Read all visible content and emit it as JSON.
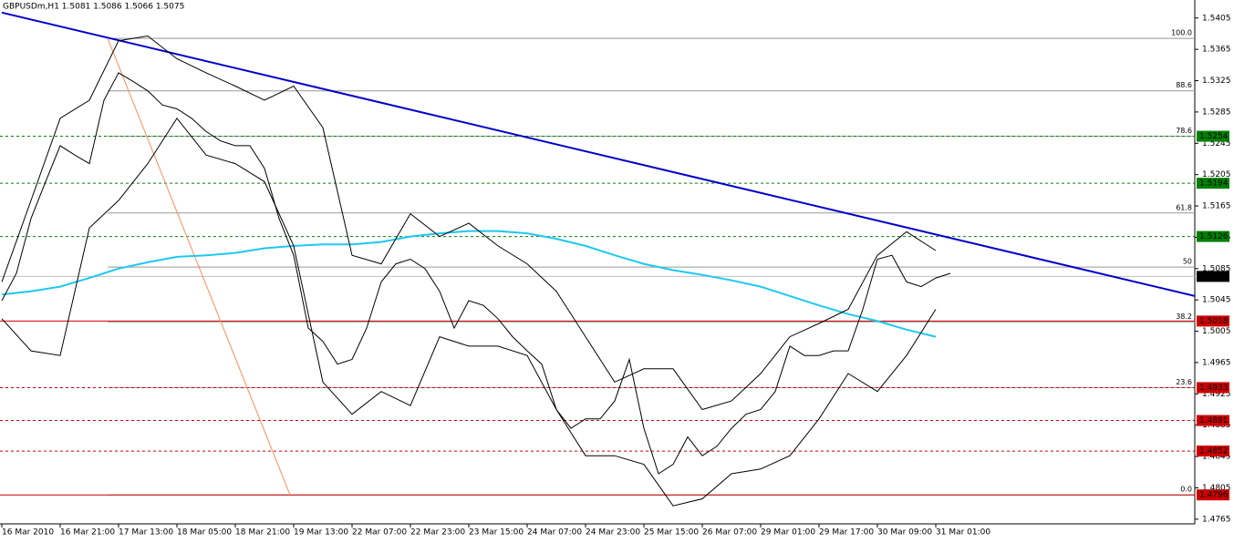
{
  "chart_data": {
    "type": "line",
    "title": "GBPUSDm,H1  1.5081 1.5086 1.5066 1.5075",
    "xlim": [
      0,
      327
    ],
    "ylim": [
      1.4759,
      1.5428
    ],
    "xticks": [
      {
        "value": 0,
        "label": "16 Mar 2010"
      },
      {
        "value": 16,
        "label": "16 Mar 21:00"
      },
      {
        "value": 32,
        "label": "17 Mar 13:00"
      },
      {
        "value": 48,
        "label": "18 Mar 05:00"
      },
      {
        "value": 64,
        "label": "18 Mar 21:00"
      },
      {
        "value": 80,
        "label": "19 Mar 13:00"
      },
      {
        "value": 96,
        "label": "22 Mar 07:00"
      },
      {
        "value": 112,
        "label": "22 Mar 23:00"
      },
      {
        "value": 128,
        "label": "23 Mar 15:00"
      },
      {
        "value": 144,
        "label": "24 Mar 07:00"
      },
      {
        "value": 160,
        "label": "24 Mar 23:00"
      },
      {
        "value": 176,
        "label": "25 Mar 15:00"
      },
      {
        "value": 192,
        "label": "26 Mar 07:00"
      },
      {
        "value": 208,
        "label": "29 Mar 01:00"
      },
      {
        "value": 224,
        "label": "29 Mar 17:00"
      },
      {
        "value": 240,
        "label": "30 Mar 09:00"
      },
      {
        "value": 256,
        "label": "31 Mar 01:00"
      }
    ],
    "yticks": [
      1.5405,
      1.5365,
      1.5325,
      1.5285,
      1.5245,
      1.5205,
      1.5165,
      1.5125,
      1.5085,
      1.5045,
      1.5005,
      1.4965,
      1.4925,
      1.4885,
      1.4845,
      1.4805,
      1.4765
    ],
    "series": [
      {
        "color": "#1ec8f0",
        "width": 2,
        "x": [
          0,
          8,
          16,
          24,
          32,
          40,
          48,
          56,
          64,
          72,
          80,
          88,
          96,
          104,
          112,
          120,
          128,
          136,
          144,
          152,
          160,
          168,
          176,
          184,
          192,
          200,
          208,
          216,
          224,
          232,
          240,
          248,
          256
        ],
        "values": [
          1.5052,
          1.5056,
          1.5062,
          1.5073,
          1.5085,
          1.5093,
          1.51,
          1.5102,
          1.5105,
          1.5111,
          1.5114,
          1.5116,
          1.5116,
          1.5119,
          1.5126,
          1.513,
          1.5133,
          1.5133,
          1.513,
          1.5123,
          1.5114,
          1.5102,
          1.5091,
          1.5083,
          1.5077,
          1.507,
          1.5062,
          1.505,
          1.5038,
          1.5027,
          1.5018,
          1.5007,
          1.4998
        ]
      },
      {
        "color": "#000000",
        "width": 1,
        "x": [
          0,
          8,
          16,
          24,
          32,
          40,
          48,
          56,
          64,
          72,
          80,
          88,
          96,
          104,
          112,
          120,
          128,
          136,
          144,
          152,
          160,
          168,
          176,
          184,
          192,
          200,
          208,
          216,
          224,
          232,
          240,
          248,
          256
        ],
        "values": [
          1.5068,
          1.5172,
          1.5277,
          1.53,
          1.5376,
          1.5382,
          1.5353,
          1.5335,
          1.5318,
          1.53,
          1.5318,
          1.5265,
          1.5102,
          1.5091,
          1.5155,
          1.5126,
          1.5143,
          1.5114,
          1.5091,
          1.5056,
          1.4998,
          1.494,
          1.4957,
          1.4957,
          1.4905,
          1.4916,
          1.4951,
          1.4998,
          1.5015,
          1.5033,
          1.5102,
          1.5132,
          1.5108
        ]
      },
      {
        "color": "#000000",
        "width": 1,
        "x": [
          0,
          8,
          16,
          24,
          32,
          40,
          48,
          56,
          64,
          72,
          80,
          88,
          96,
          104,
          112,
          120,
          128,
          136,
          144,
          152,
          160,
          168,
          176,
          184,
          192,
          200,
          208,
          216,
          224,
          232,
          240,
          248,
          256
        ],
        "values": [
          1.5021,
          1.498,
          1.4974,
          1.5137,
          1.5172,
          1.5219,
          1.5277,
          1.523,
          1.5219,
          1.5196,
          1.5114,
          1.494,
          1.4899,
          1.4928,
          1.491,
          1.4998,
          1.4986,
          1.4986,
          1.4974,
          1.4905,
          1.4846,
          1.4846,
          1.4835,
          1.4782,
          1.4791,
          1.4823,
          1.4829,
          1.4846,
          1.4893,
          1.4951,
          1.4928,
          1.4974,
          1.5033
        ]
      },
      {
        "color": "#000000",
        "width": 1,
        "x": [
          0,
          4,
          8,
          12,
          16,
          20,
          24,
          28,
          32,
          36,
          40,
          44,
          48,
          52,
          56,
          60,
          64,
          68,
          72,
          76,
          80,
          84,
          88,
          92,
          96,
          100,
          104,
          108,
          112,
          116,
          120,
          124,
          128,
          132,
          136,
          140,
          144,
          148,
          152,
          156,
          160,
          164,
          168,
          172,
          176,
          180,
          184,
          188,
          192,
          196,
          200,
          204,
          208,
          212,
          216,
          220,
          224,
          228,
          232,
          236,
          240,
          244,
          248,
          252,
          256,
          260
        ],
        "values": [
          1.5044,
          1.5079,
          1.5149,
          1.5196,
          1.5242,
          1.523,
          1.5219,
          1.53,
          1.5335,
          1.5324,
          1.5312,
          1.5294,
          1.5289,
          1.5277,
          1.526,
          1.5248,
          1.5242,
          1.5242,
          1.5213,
          1.5149,
          1.5102,
          1.5009,
          1.4992,
          1.4963,
          1.4969,
          1.5009,
          1.5068,
          1.5091,
          1.5097,
          1.5085,
          1.5056,
          1.5009,
          1.5044,
          1.5038,
          1.5021,
          1.4998,
          1.498,
          1.4963,
          1.4905,
          1.4881,
          1.4893,
          1.4893,
          1.4916,
          1.4969,
          1.4881,
          1.4823,
          1.4835,
          1.487,
          1.4846,
          1.4858,
          1.4881,
          1.4899,
          1.4905,
          1.4928,
          1.4986,
          1.4974,
          1.4974,
          1.498,
          1.498,
          1.5033,
          1.5097,
          1.5102,
          1.5068,
          1.5062,
          1.5073,
          1.5079
        ]
      }
    ],
    "trendlines": [
      {
        "color": "#0000c8",
        "width": 2,
        "x": [
          0,
          327
        ],
        "values": [
          1.5412,
          1.505
        ]
      },
      {
        "color": "#ff8c5a",
        "width": 1,
        "x": [
          29,
          79
        ],
        "values": [
          1.5379,
          1.4796
        ]
      }
    ],
    "fibonacci": {
      "x_start": 29,
      "color": "#999999",
      "levels": [
        {
          "value": 1.5379,
          "label": "100.0"
        },
        {
          "value": 1.5312,
          "label": "88.6"
        },
        {
          "value": 1.5254,
          "label": "78.6"
        },
        {
          "value": 1.5156,
          "label": "61.8"
        },
        {
          "value": 1.5087,
          "label": "50"
        },
        {
          "value": 1.5017,
          "label": "38.2"
        },
        {
          "value": 1.4933,
          "label": "23.6"
        },
        {
          "value": 1.4796,
          "label": "0.0"
        }
      ]
    },
    "levels": [
      {
        "value": 1.5254,
        "color": "#008000",
        "style": "dashed"
      },
      {
        "value": 1.5194,
        "color": "#008000",
        "style": "dashed"
      },
      {
        "value": 1.5126,
        "color": "#008000",
        "style": "dashed"
      },
      {
        "value": 1.5018,
        "color": "#cc0000",
        "style": "solid"
      },
      {
        "value": 1.4933,
        "color": "#cc0000",
        "style": "dashed"
      },
      {
        "value": 1.4891,
        "color": "#cc0000",
        "style": "dashed"
      },
      {
        "value": 1.4852,
        "color": "#cc0000",
        "style": "dashed"
      },
      {
        "value": 1.4796,
        "color": "#cc0000",
        "style": "solid"
      }
    ],
    "current": {
      "value": 1.5075,
      "color": "#000000",
      "line_color": "#c0c0c0"
    }
  }
}
